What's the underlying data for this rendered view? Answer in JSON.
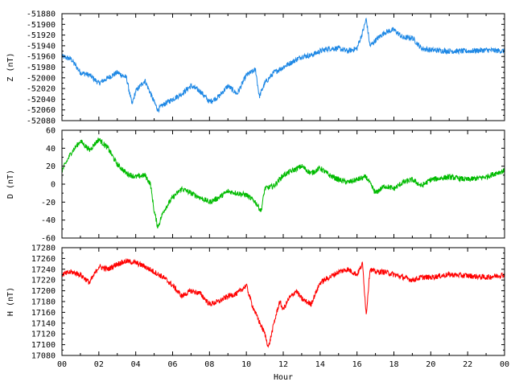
{
  "chart_data": [
    {
      "type": "line",
      "ylabel": "Z (nT)",
      "ylim": [
        -52080,
        -51880
      ],
      "yticks": [
        -52080,
        -52060,
        -52040,
        -52020,
        -52000,
        -51980,
        -51960,
        -51940,
        -51920,
        -51900,
        -51880
      ],
      "xlim": [
        0,
        24
      ],
      "color": "#1e88e5",
      "series": [
        {
          "x": [
            0,
            0.5,
            1,
            1.5,
            2,
            2.5,
            3,
            3.5,
            3.8,
            4,
            4.5,
            5,
            5.2,
            5.5,
            6,
            6.5,
            7,
            7.5,
            8,
            8.5,
            9,
            9.5,
            10,
            10.5,
            10.7,
            11,
            11.5,
            12,
            12.5,
            13,
            13.5,
            14,
            14.5,
            15,
            15.5,
            16,
            16.3,
            16.5,
            16.7,
            17,
            17.5,
            18,
            18.5,
            19,
            19.5,
            20,
            21,
            22,
            23,
            24
          ],
          "y": [
            -51960,
            -51965,
            -51990,
            -51995,
            -52010,
            -52000,
            -51990,
            -52000,
            -52050,
            -52025,
            -52005,
            -52045,
            -52060,
            -52050,
            -52040,
            -52030,
            -52015,
            -52025,
            -52045,
            -52035,
            -52015,
            -52030,
            -51995,
            -51985,
            -52035,
            -52010,
            -51990,
            -51980,
            -51970,
            -51960,
            -51958,
            -51950,
            -51945,
            -51945,
            -51950,
            -51945,
            -51915,
            -51890,
            -51940,
            -51930,
            -51915,
            -51910,
            -51925,
            -51925,
            -51945,
            -51948,
            -51950,
            -51950,
            -51948,
            -51950
          ]
        }
      ]
    },
    {
      "type": "line",
      "ylabel": "D (nT)",
      "ylim": [
        -60,
        60
      ],
      "yticks": [
        -60,
        -40,
        -20,
        0,
        20,
        40,
        60
      ],
      "xlim": [
        0,
        24
      ],
      "color": "#00bb00",
      "series": [
        {
          "x": [
            0,
            0.5,
            1,
            1.5,
            2,
            2.5,
            3,
            3.5,
            4,
            4.5,
            4.8,
            5,
            5.2,
            5.5,
            6,
            6.5,
            7,
            7.5,
            8,
            8.5,
            9,
            9.5,
            10,
            10.5,
            10.8,
            11,
            11.5,
            12,
            12.5,
            13,
            13.5,
            14,
            14.5,
            15,
            15.5,
            16,
            16.5,
            17,
            17.5,
            18,
            18.5,
            19,
            19.5,
            20,
            21,
            22,
            23,
            23.5,
            24
          ],
          "y": [
            15,
            35,
            48,
            38,
            50,
            40,
            22,
            12,
            8,
            10,
            0,
            -30,
            -48,
            -30,
            -15,
            -5,
            -10,
            -15,
            -20,
            -15,
            -8,
            -10,
            -12,
            -20,
            -30,
            -5,
            -2,
            10,
            15,
            20,
            12,
            18,
            10,
            5,
            2,
            5,
            8,
            -10,
            -2,
            -5,
            2,
            5,
            -2,
            5,
            8,
            5,
            8,
            12,
            15
          ]
        }
      ]
    },
    {
      "type": "line",
      "ylabel": "H (nT)",
      "xlabel": "Hour",
      "ylim": [
        17080,
        17280
      ],
      "yticks": [
        17080,
        17100,
        17120,
        17140,
        17160,
        17180,
        17200,
        17220,
        17240,
        17260,
        17280
      ],
      "xlim": [
        0,
        24
      ],
      "xticks": [
        "00",
        "02",
        "04",
        "06",
        "08",
        "10",
        "12",
        "14",
        "16",
        "18",
        "20",
        "22",
        "00"
      ],
      "color": "#ff0000",
      "series": [
        {
          "x": [
            0,
            0.5,
            1,
            1.5,
            2,
            2.5,
            3,
            3.5,
            4,
            4.5,
            5,
            5.5,
            6,
            6.5,
            7,
            7.5,
            8,
            8.5,
            9,
            9.5,
            10,
            10.3,
            10.6,
            11,
            11.2,
            11.5,
            11.8,
            12,
            12.3,
            12.7,
            13,
            13.5,
            14,
            14.5,
            15,
            15.5,
            16,
            16.3,
            16.5,
            16.7,
            17,
            17.5,
            18,
            18.5,
            19,
            19.5,
            20,
            21,
            22,
            23,
            24
          ],
          "y": [
            17230,
            17235,
            17230,
            17215,
            17245,
            17240,
            17250,
            17255,
            17252,
            17245,
            17235,
            17225,
            17210,
            17190,
            17200,
            17195,
            17175,
            17180,
            17190,
            17195,
            17210,
            17175,
            17150,
            17120,
            17095,
            17140,
            17180,
            17165,
            17185,
            17200,
            17185,
            17175,
            17215,
            17225,
            17235,
            17240,
            17230,
            17250,
            17155,
            17240,
            17235,
            17235,
            17230,
            17225,
            17220,
            17225,
            17225,
            17230,
            17228,
            17225,
            17230
          ]
        }
      ]
    }
  ]
}
